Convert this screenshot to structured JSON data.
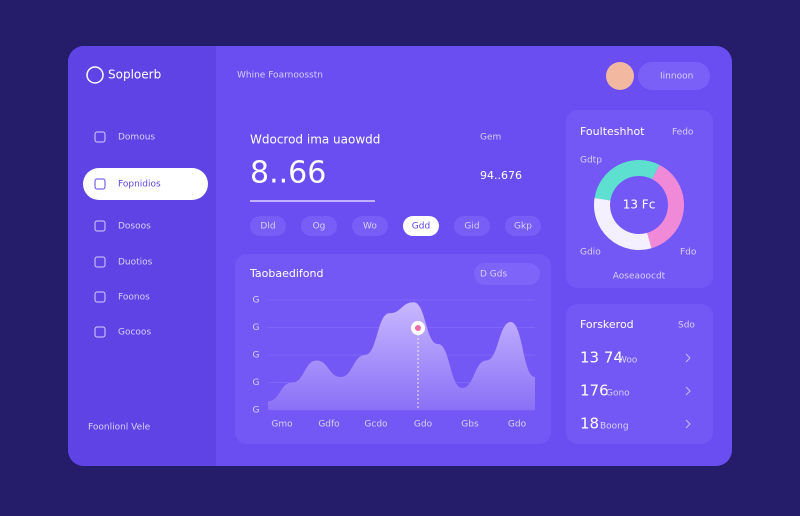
{
  "app": {
    "logo": "Soploerb",
    "header": "Whine Foarnoosstn",
    "user_button": "Iinnoon",
    "sidebar": [
      "Domous",
      "Fopnidios",
      "Dosoos",
      "Duotios",
      "Foonos",
      "Gocoos"
    ],
    "sidebar_footer": "Foonlionl Vele"
  },
  "summary": {
    "title": "Wdocrod ima uaowdd",
    "menu": "Gem",
    "value": "8..66",
    "secondary": "94..676",
    "pills": [
      "Dld",
      "Og",
      "Wo",
      "Gdd",
      "Gid",
      "Gkp"
    ]
  },
  "trend": {
    "title": "Taobaedifond",
    "control": "D Gds",
    "type": "area",
    "categories": [
      "Gmo",
      "Gdfo",
      "Gcdo",
      "Gdo",
      "Gbs",
      "Gdo"
    ],
    "values": [
      8,
      25,
      45,
      30,
      50,
      88,
      98,
      60,
      20,
      45,
      80,
      30
    ],
    "ylim": [
      0,
      100
    ],
    "yticks": [
      {
        "value": 0,
        "label": "G"
      },
      {
        "value": 25,
        "label": "G"
      },
      {
        "value": 50,
        "label": "G"
      },
      {
        "value": 75,
        "label": "G"
      },
      {
        "value": 100,
        "label": "G"
      }
    ]
  },
  "donut": {
    "title": "Foulteshhot",
    "menu": "Fedo",
    "type": "pie",
    "center": "13 Fc",
    "labels": [
      "Gdtp",
      "Gdio",
      "Fdo"
    ],
    "footer": "Aoseaoocdt",
    "values": [
      30,
      38,
      32
    ],
    "colors": [
      "#5ee0d0",
      "#f08ad8",
      "#f4f0ff"
    ]
  },
  "list": {
    "title": "Forskerod",
    "menu": "Sdo",
    "rows": [
      [
        "13 74",
        "Woo"
      ],
      [
        "176",
        "Gono"
      ],
      [
        "18",
        "Boong"
      ]
    ]
  }
}
